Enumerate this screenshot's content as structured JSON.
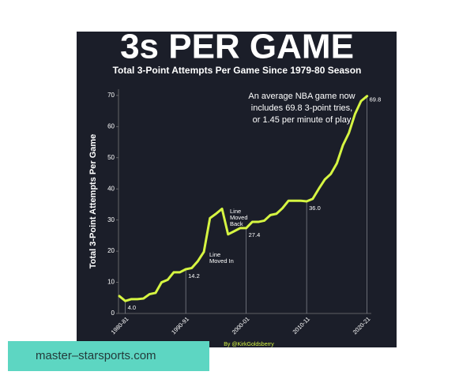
{
  "chart_data": {
    "type": "line",
    "title": "3s PER GAME",
    "subtitle": "Total 3-Point Attempts Per Game Since 1979-80 Season",
    "y_label": "Total 3-Point Attempts Per Game",
    "categories": [
      null,
      "1980-81",
      null,
      null,
      null,
      null,
      null,
      null,
      null,
      null,
      null,
      "1990-91",
      null,
      null,
      null,
      null,
      null,
      null,
      null,
      null,
      null,
      "2000-01",
      null,
      null,
      null,
      null,
      null,
      null,
      null,
      null,
      null,
      "2010-11",
      null,
      null,
      null,
      null,
      null,
      null,
      null,
      null,
      null,
      "2020-21"
    ],
    "series": [
      {
        "name": "3-point attempts per game",
        "color": "#d6f542",
        "values": [
          5.6,
          4.0,
          4.6,
          4.6,
          4.8,
          6.2,
          6.6,
          10.0,
          10.8,
          13.2,
          13.2,
          14.2,
          14.6,
          16.8,
          19.8,
          30.6,
          32.0,
          33.6,
          25.4,
          26.4,
          27.4,
          27.4,
          29.4,
          29.4,
          29.8,
          31.6,
          32.0,
          33.8,
          36.2,
          36.2,
          36.2,
          36.0,
          36.8,
          40.0,
          43.0,
          44.8,
          48.2,
          54.0,
          58.0,
          64.0,
          68.2,
          69.8
        ],
        "value_labels": [
          null,
          "4.0",
          null,
          null,
          null,
          null,
          null,
          null,
          null,
          null,
          null,
          "14.2",
          null,
          null,
          null,
          null,
          null,
          null,
          null,
          null,
          null,
          "27.4",
          null,
          null,
          null,
          null,
          null,
          null,
          null,
          null,
          null,
          "36.0",
          null,
          null,
          null,
          null,
          null,
          null,
          null,
          null,
          null,
          "69.8"
        ]
      }
    ],
    "ylim": [
      0,
      72
    ],
    "yticks": [
      0,
      10,
      20,
      30,
      40,
      50,
      60,
      70
    ],
    "annotations": [
      {
        "lines": [
          "Line",
          "Moved In"
        ],
        "index": 14
      },
      {
        "lines": [
          "Line",
          "Moved",
          "Back"
        ],
        "index": 17
      },
      {
        "lines": [
          "An average NBA game now",
          "includes 69.8 3-point tries,",
          "or 1.45 per minute of play"
        ],
        "index": 41
      }
    ],
    "credit": "By @KirkGoldsberry"
  },
  "watermark": "master–starsports.com"
}
